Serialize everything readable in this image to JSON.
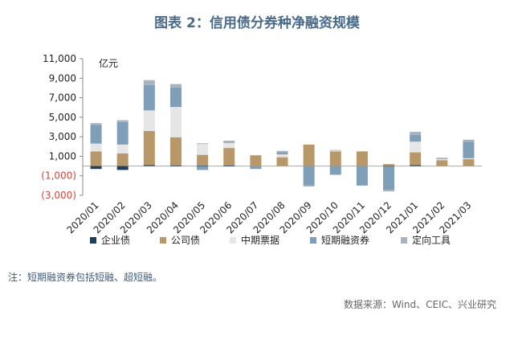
{
  "header": {
    "title": "图表 2：信用债分券种净融资规模"
  },
  "footer": {
    "note": "注：短期融资券包括短融、超短融。",
    "source": "数据来源：Wind、CEIC、兴业研究"
  },
  "chart_data": {
    "type": "bar",
    "stacked": true,
    "title": "图表 2：信用债分券种净融资规模",
    "unit_label": "亿元",
    "ylim": [
      -3000,
      11000
    ],
    "yticks": [
      11000,
      9000,
      7000,
      5000,
      3000,
      1000,
      -1000,
      -3000
    ],
    "ytick_labels": [
      "11,000",
      "9,000",
      "7,000",
      "5,000",
      "3,000",
      "1,000",
      "(1,000)",
      "(3,000)"
    ],
    "categories": [
      "2020/01",
      "2020/02",
      "2020/03",
      "2020/04",
      "2020/05",
      "2020/06",
      "2020/07",
      "2020/08",
      "2020/09",
      "2020/10",
      "2020/11",
      "2020/12",
      "2021/01",
      "2021/02",
      "2021/03"
    ],
    "series": [
      {
        "name": "企业债",
        "color": "#1f3d5c",
        "values": [
          -300,
          -400,
          100,
          50,
          50,
          50,
          0,
          0,
          0,
          0,
          0,
          -50,
          100,
          0,
          0
        ]
      },
      {
        "name": "公司债",
        "color": "#b89868",
        "values": [
          1500,
          1300,
          3500,
          2900,
          1100,
          1800,
          1100,
          900,
          2200,
          1500,
          1500,
          200,
          1300,
          600,
          700
        ]
      },
      {
        "name": "中期票据",
        "color": "#e6e6e6",
        "values": [
          800,
          900,
          2100,
          3100,
          1100,
          500,
          0,
          300,
          0,
          100,
          0,
          0,
          1100,
          100,
          100
        ]
      },
      {
        "name": "短期融资券",
        "color": "#7f9fb8",
        "values": [
          1900,
          2300,
          2600,
          2000,
          -400,
          0,
          -300,
          200,
          -2000,
          -900,
          -2000,
          -2400,
          700,
          0,
          1700
        ]
      },
      {
        "name": "定向工具",
        "color": "#a7b3bd",
        "values": [
          200,
          200,
          500,
          350,
          80,
          250,
          0,
          150,
          -100,
          50,
          0,
          -150,
          300,
          150,
          200
        ]
      }
    ]
  }
}
